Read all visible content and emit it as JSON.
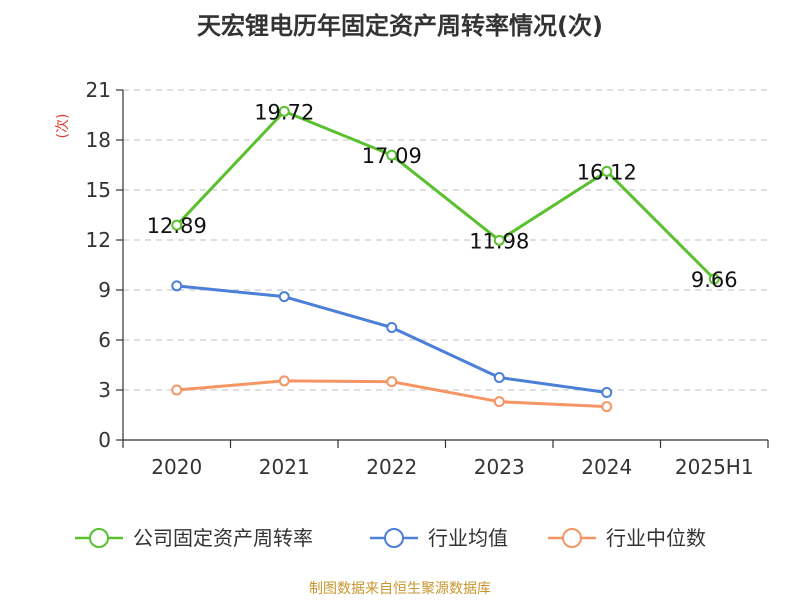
{
  "chart_data": {
    "type": "line",
    "title": "天宏锂电历年固定资产周转率情况(次)",
    "ylabel": "(次)",
    "xlabel": "",
    "ylim": [
      0,
      21
    ],
    "yticks": [
      0,
      3,
      6,
      9,
      12,
      15,
      18,
      21
    ],
    "categories": [
      "2020",
      "2021",
      "2022",
      "2023",
      "2024",
      "2025H1"
    ],
    "grid": true,
    "legend_position": "bottom",
    "series": [
      {
        "name": "公司固定资产周转率",
        "color": "#5ac12e",
        "values": [
          12.89,
          19.72,
          17.09,
          11.98,
          16.12,
          9.66
        ],
        "labels": [
          "12.89",
          "19.72",
          "17.09",
          "11.98",
          "16.12",
          "9.66"
        ]
      },
      {
        "name": "行业均值",
        "color": "#4b7fd8",
        "values": [
          9.25,
          8.6,
          6.75,
          3.75,
          2.85,
          null
        ]
      },
      {
        "name": "行业中位数",
        "color": "#f59564",
        "values": [
          3.0,
          3.55,
          3.5,
          2.3,
          2.0,
          null
        ]
      }
    ]
  },
  "footer": {
    "source": "制图数据来自恒生聚源数据库"
  }
}
